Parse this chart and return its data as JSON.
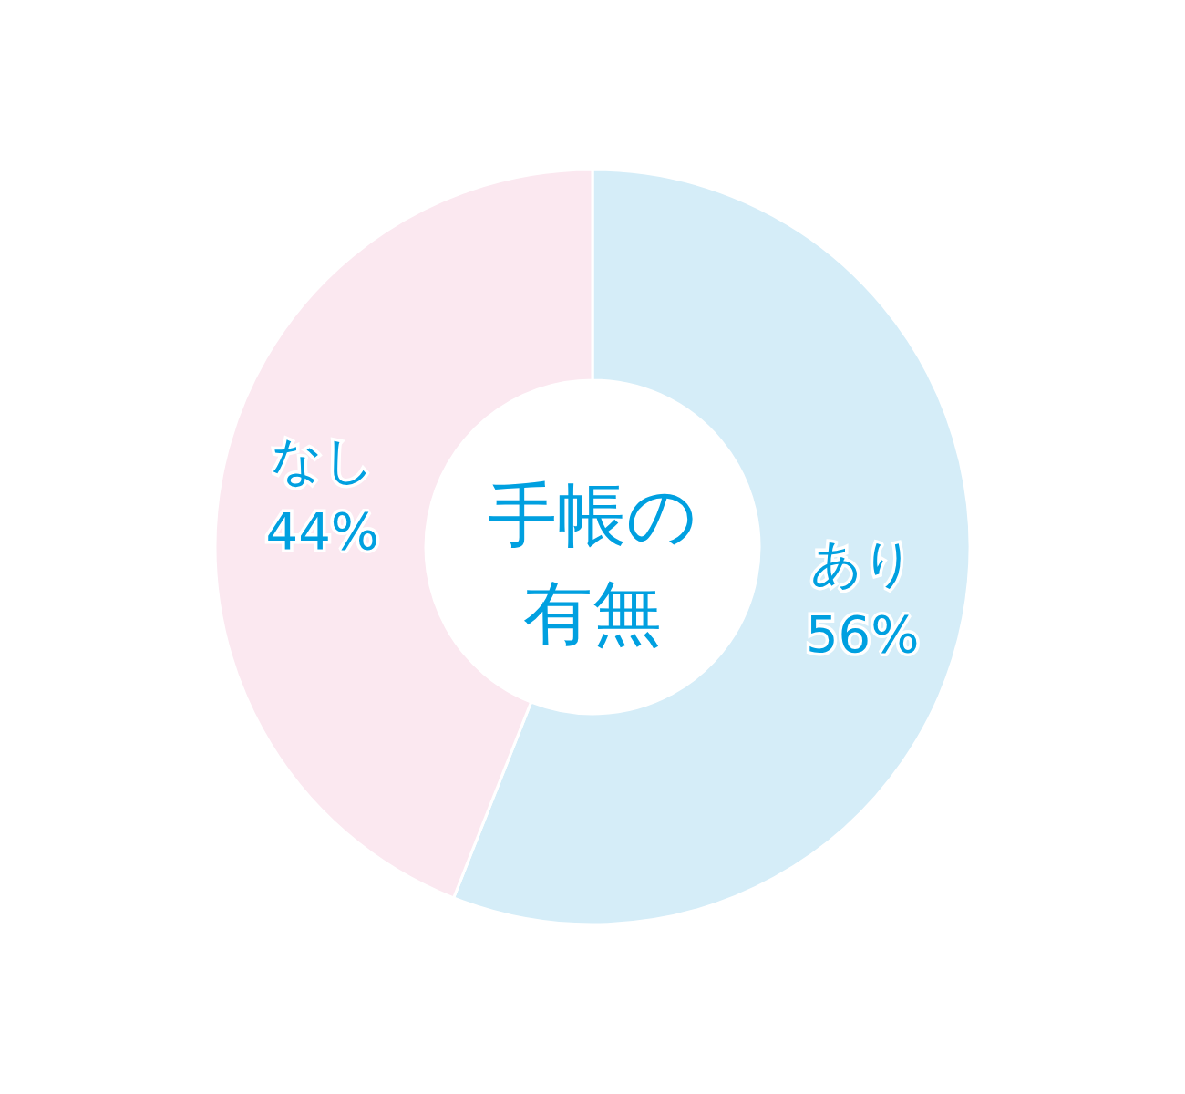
{
  "chart_data": {
    "type": "donut",
    "title": "手帳の有無",
    "categories": [
      "あり",
      "なし"
    ],
    "values": [
      56,
      44
    ],
    "value_labels": [
      "56%",
      "44%"
    ],
    "colors": [
      "#d5edf8",
      "#fbe8f0"
    ],
    "legend": false
  }
}
